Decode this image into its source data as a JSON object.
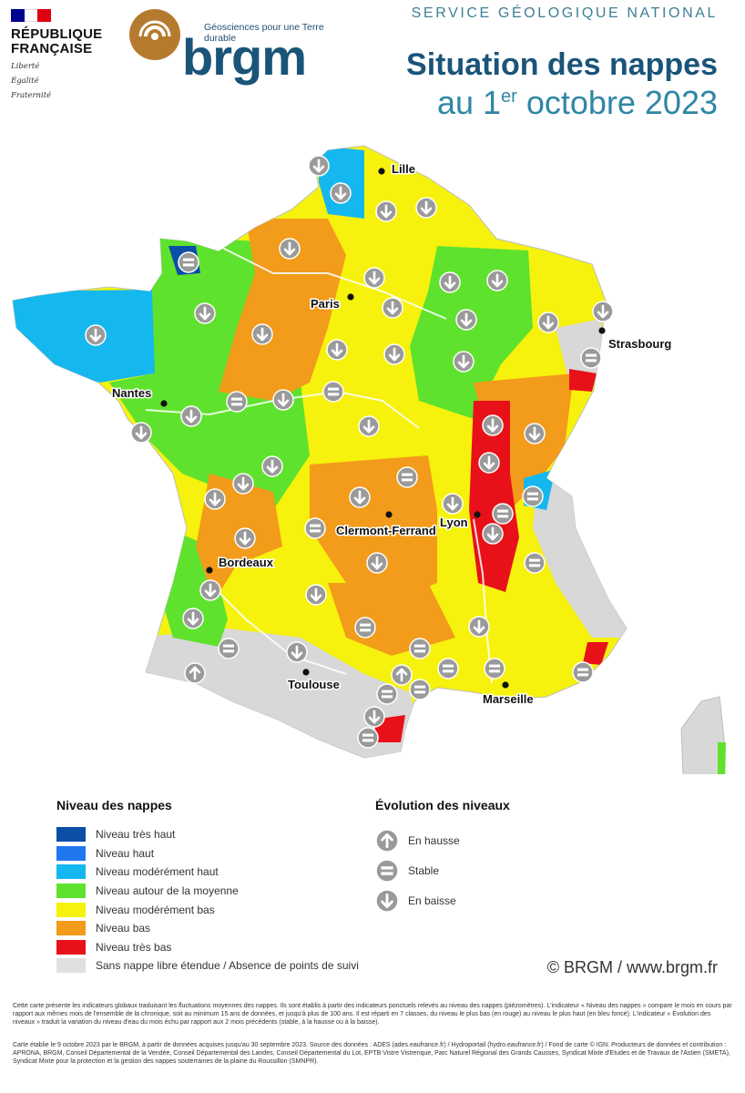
{
  "header": {
    "republique": [
      "RÉPUBLIQUE",
      "FRANÇAISE"
    ],
    "motto": [
      "Liberté",
      "Égalité",
      "Fraternité"
    ],
    "brgm_tagline": "Géosciences pour une Terre durable",
    "brgm_word": "brgm",
    "service": "SERVICE GÉOLOGIQUE NATIONAL",
    "title_main": "Situation des nappes",
    "title_sub_prefix": "au 1",
    "title_sub_sup": "er",
    "title_sub_suffix": " octobre 2023"
  },
  "colors": {
    "tres_haut": "#0b4ea6",
    "haut": "#1f78f0",
    "moderement_haut": "#14b8ef",
    "moyenne": "#5fe22d",
    "moderement_bas": "#f6f20d",
    "bas": "#f39b1a",
    "tres_bas": "#e8111a",
    "absence": "#d8d8d8",
    "flag_blue": "#000091",
    "flag_red": "#e1000f",
    "river": "#ffffff",
    "arrow_circle": "#9a9a9a"
  },
  "map": {
    "cities": [
      {
        "id": "lille",
        "name": "Lille"
      },
      {
        "id": "paris",
        "name": "Paris"
      },
      {
        "id": "strasbourg",
        "name": "Strasbourg"
      },
      {
        "id": "nantes",
        "name": "Nantes"
      },
      {
        "id": "lyon",
        "name": "Lyon"
      },
      {
        "id": "clermont",
        "name": "Clermont-Ferrand"
      },
      {
        "id": "bordeaux",
        "name": "Bordeaux"
      },
      {
        "id": "toulouse",
        "name": "Toulouse"
      },
      {
        "id": "marseille",
        "name": "Marseille"
      }
    ],
    "indicators": [
      "down",
      "down",
      "down",
      "down",
      "stable",
      "down",
      "down",
      "down",
      "down",
      "down",
      "down",
      "down",
      "down",
      "down",
      "down",
      "down",
      "down",
      "stable",
      "stable",
      "down",
      "down",
      "down",
      "down",
      "down",
      "down",
      "stable",
      "down",
      "down",
      "down",
      "down",
      "stable",
      "stable",
      "down",
      "down",
      "down",
      "down",
      "stable",
      "down",
      "down",
      "stable",
      "down",
      "stable",
      "down",
      "down",
      "down",
      "up",
      "up",
      "down",
      "stable",
      "stable",
      "stable",
      "down",
      "stable",
      "stable",
      "stable",
      "stable",
      "down",
      "stable",
      "stable"
    ]
  },
  "legend": {
    "niveau_title": "Niveau des nappes",
    "niveau_items": [
      {
        "label": "Niveau très haut",
        "color": "#0b4ea6"
      },
      {
        "label": "Niveau haut",
        "color": "#1f78f0"
      },
      {
        "label": "Niveau modérément haut",
        "color": "#14b8ef"
      },
      {
        "label": "Niveau autour de la moyenne",
        "color": "#5fe22d"
      },
      {
        "label": "Niveau modérément bas",
        "color": "#f6f20d"
      },
      {
        "label": "Niveau bas",
        "color": "#f39b1a"
      },
      {
        "label": "Niveau très bas",
        "color": "#e8111a"
      },
      {
        "label": "Sans nappe libre étendue / Absence de points de suivi",
        "color": "#e0e0e0"
      }
    ],
    "evolution_title": "Évolution des niveaux",
    "evolution_items": [
      {
        "label": "En hausse",
        "icon": "arrow-up-icon"
      },
      {
        "label": "Stable",
        "icon": "equals-icon"
      },
      {
        "label": "En baisse",
        "icon": "arrow-down-icon"
      }
    ]
  },
  "credit": "© BRGM / www.brgm.fr",
  "footnotes": [
    "Cette carte présente les indicateurs globaux traduisant les fluctuations moyennes des nappes. Ils sont établis à partir des indicateurs ponctuels relevés au niveau des nappes (piézomètres). L'indicateur « Niveau des nappes » compare le mois en cours par rapport aux mêmes mois de l'ensemble de la chronique, soit au minimum 15 ans de données, et jusqu'à plus de 100 ans. Il est réparti en 7 classes, du niveau le plus bas (en rouge) au niveau le plus haut (en bleu foncé). L'indicateur « Évolution des niveaux » traduit la variation du niveau d'eau du mois échu par rapport aux 2 mois précédents (stable, à la hausse ou à la baisse).",
    "Carte établie le 9 octobre 2023 par le BRGM, à partir de données acquises jusqu'au 30 septembre 2023. Source des données : ADES (ades.eaufrance.fr) / Hydroportail (hydro.eaufrance.fr) / Fond de carte © IGN. Producteurs de données et contribution : APRONA, BRGM, Conseil Départemental de la Vendée, Conseil Départemental des Landes, Conseil Départemental du Lot, EPTB Vistre Vistrenque, Parc Naturel Régional des Grands Causses, Syndicat Mixte d'Etudes et de Travaux de l'Astien (SMETA), Syndicat Mixte pour la protection et la gestion des nappes souterraines de la plaine du Roussillon (SMNPR)."
  ]
}
